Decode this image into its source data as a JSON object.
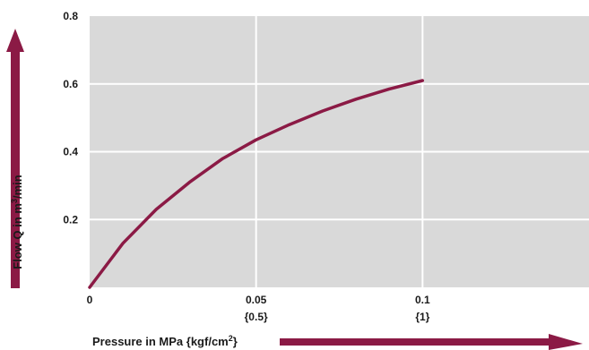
{
  "colors": {
    "plot_background": "#d9d9d9",
    "grid": "#ffffff",
    "curve": "#8b1a45",
    "arrow": "#8b1a45",
    "text": "#1a1a1a"
  },
  "chart_data": {
    "type": "line",
    "title": "",
    "xlabel": "Pressure in MPa {kgf/cm",
    "xlabel_sup": "2",
    "xlabel_suffix": "}",
    "ylabel": "Flow Q in m",
    "ylabel_sup": "3",
    "ylabel_suffix": "/min",
    "xlim": [
      0,
      0.15
    ],
    "ylim": [
      0,
      0.8
    ],
    "grid": true,
    "x_ticks": [
      {
        "value": 0,
        "label": "0",
        "sublabel": ""
      },
      {
        "value": 0.05,
        "label": "0.05",
        "sublabel": "{0.5}"
      },
      {
        "value": 0.1,
        "label": "0.1",
        "sublabel": "{1}"
      }
    ],
    "y_ticks": [
      {
        "value": 0.2,
        "label": "0.2"
      },
      {
        "value": 0.4,
        "label": "0.4"
      },
      {
        "value": 0.6,
        "label": "0.6"
      },
      {
        "value": 0.8,
        "label": "0.8"
      }
    ],
    "series": [
      {
        "x": [
          0,
          0.01,
          0.02,
          0.03,
          0.04,
          0.05,
          0.06,
          0.07,
          0.08,
          0.09,
          0.1
        ],
        "y": [
          0,
          0.13,
          0.23,
          0.31,
          0.38,
          0.435,
          0.48,
          0.52,
          0.555,
          0.585,
          0.61
        ]
      }
    ]
  }
}
